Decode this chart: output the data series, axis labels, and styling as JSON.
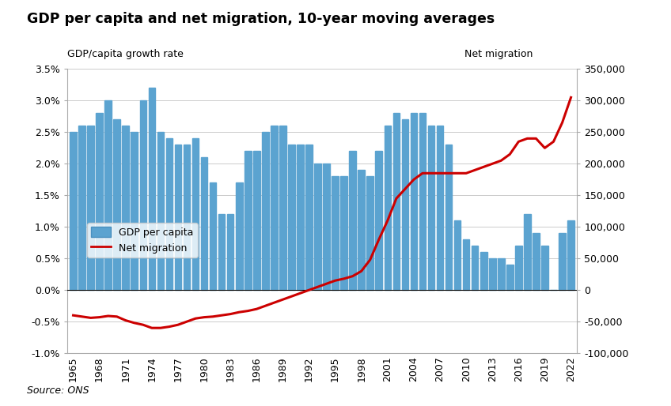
{
  "title": "GDP per capita and net migration, 10-year moving averages",
  "ylabel_left": "GDP/capita growth rate",
  "ylabel_right": "Net migration",
  "source": "Source: ONS",
  "bar_color": "#5BA3D0",
  "line_color": "#CC0000",
  "years": [
    1965,
    1966,
    1967,
    1968,
    1969,
    1970,
    1971,
    1972,
    1973,
    1974,
    1975,
    1976,
    1977,
    1978,
    1979,
    1980,
    1981,
    1982,
    1983,
    1984,
    1985,
    1986,
    1987,
    1988,
    1989,
    1990,
    1991,
    1992,
    1993,
    1994,
    1995,
    1996,
    1997,
    1998,
    1999,
    2000,
    2001,
    2002,
    2003,
    2004,
    2005,
    2006,
    2007,
    2008,
    2009,
    2010,
    2011,
    2012,
    2013,
    2014,
    2015,
    2016,
    2017,
    2018,
    2019,
    2020,
    2021,
    2022
  ],
  "gdp_values": [
    0.025,
    0.026,
    0.026,
    0.028,
    0.03,
    0.027,
    0.026,
    0.025,
    0.03,
    0.032,
    0.025,
    0.024,
    0.023,
    0.023,
    0.024,
    0.021,
    0.017,
    0.012,
    0.012,
    0.017,
    0.022,
    0.022,
    0.025,
    0.026,
    0.026,
    0.023,
    0.023,
    0.023,
    0.02,
    0.02,
    0.018,
    0.018,
    0.022,
    0.019,
    0.018,
    0.022,
    0.026,
    0.028,
    0.027,
    0.028,
    0.028,
    0.026,
    0.026,
    0.023,
    0.011,
    0.008,
    0.007,
    0.006,
    0.005,
    0.005,
    0.004,
    0.007,
    0.012,
    0.009,
    0.007,
    0.0,
    0.009,
    0.011
  ],
  "net_migration": [
    -40000,
    -42000,
    -44000,
    -43000,
    -41000,
    -42000,
    -48000,
    -52000,
    -55000,
    -60000,
    -60000,
    -58000,
    -55000,
    -50000,
    -45000,
    -43000,
    -42000,
    -40000,
    -38000,
    -35000,
    -33000,
    -30000,
    -25000,
    -20000,
    -15000,
    -10000,
    -5000,
    0,
    5000,
    10000,
    15000,
    18000,
    22000,
    30000,
    48000,
    80000,
    110000,
    145000,
    160000,
    175000,
    185000,
    185000,
    185000,
    185000,
    185000,
    185000,
    190000,
    195000,
    200000,
    205000,
    215000,
    235000,
    240000,
    240000,
    225000,
    235000,
    265000,
    305000
  ],
  "ylim_left": [
    -0.01,
    0.035
  ],
  "ylim_right": [
    -100000,
    350000
  ],
  "xtick_years": [
    1965,
    1968,
    1971,
    1974,
    1977,
    1980,
    1983,
    1986,
    1989,
    1992,
    1995,
    1998,
    2001,
    2004,
    2007,
    2010,
    2013,
    2016,
    2019,
    2022
  ],
  "yticks_left": [
    -0.01,
    -0.005,
    0.0,
    0.005,
    0.01,
    0.015,
    0.02,
    0.025,
    0.03,
    0.035
  ],
  "ytick_labels_left": [
    "-1.0%",
    "-0.5%",
    "0.0%",
    "0.5%",
    "1.0%",
    "1.5%",
    "2.0%",
    "2.5%",
    "3.0%",
    "3.5%"
  ],
  "yticks_right": [
    -100000,
    -50000,
    0,
    50000,
    100000,
    150000,
    200000,
    250000,
    300000,
    350000
  ],
  "ytick_labels_right": [
    "-100,000",
    "-50,000",
    "0",
    "50,000",
    "100,000",
    "150,000",
    "200,000",
    "250,000",
    "300,000",
    "350,000"
  ]
}
